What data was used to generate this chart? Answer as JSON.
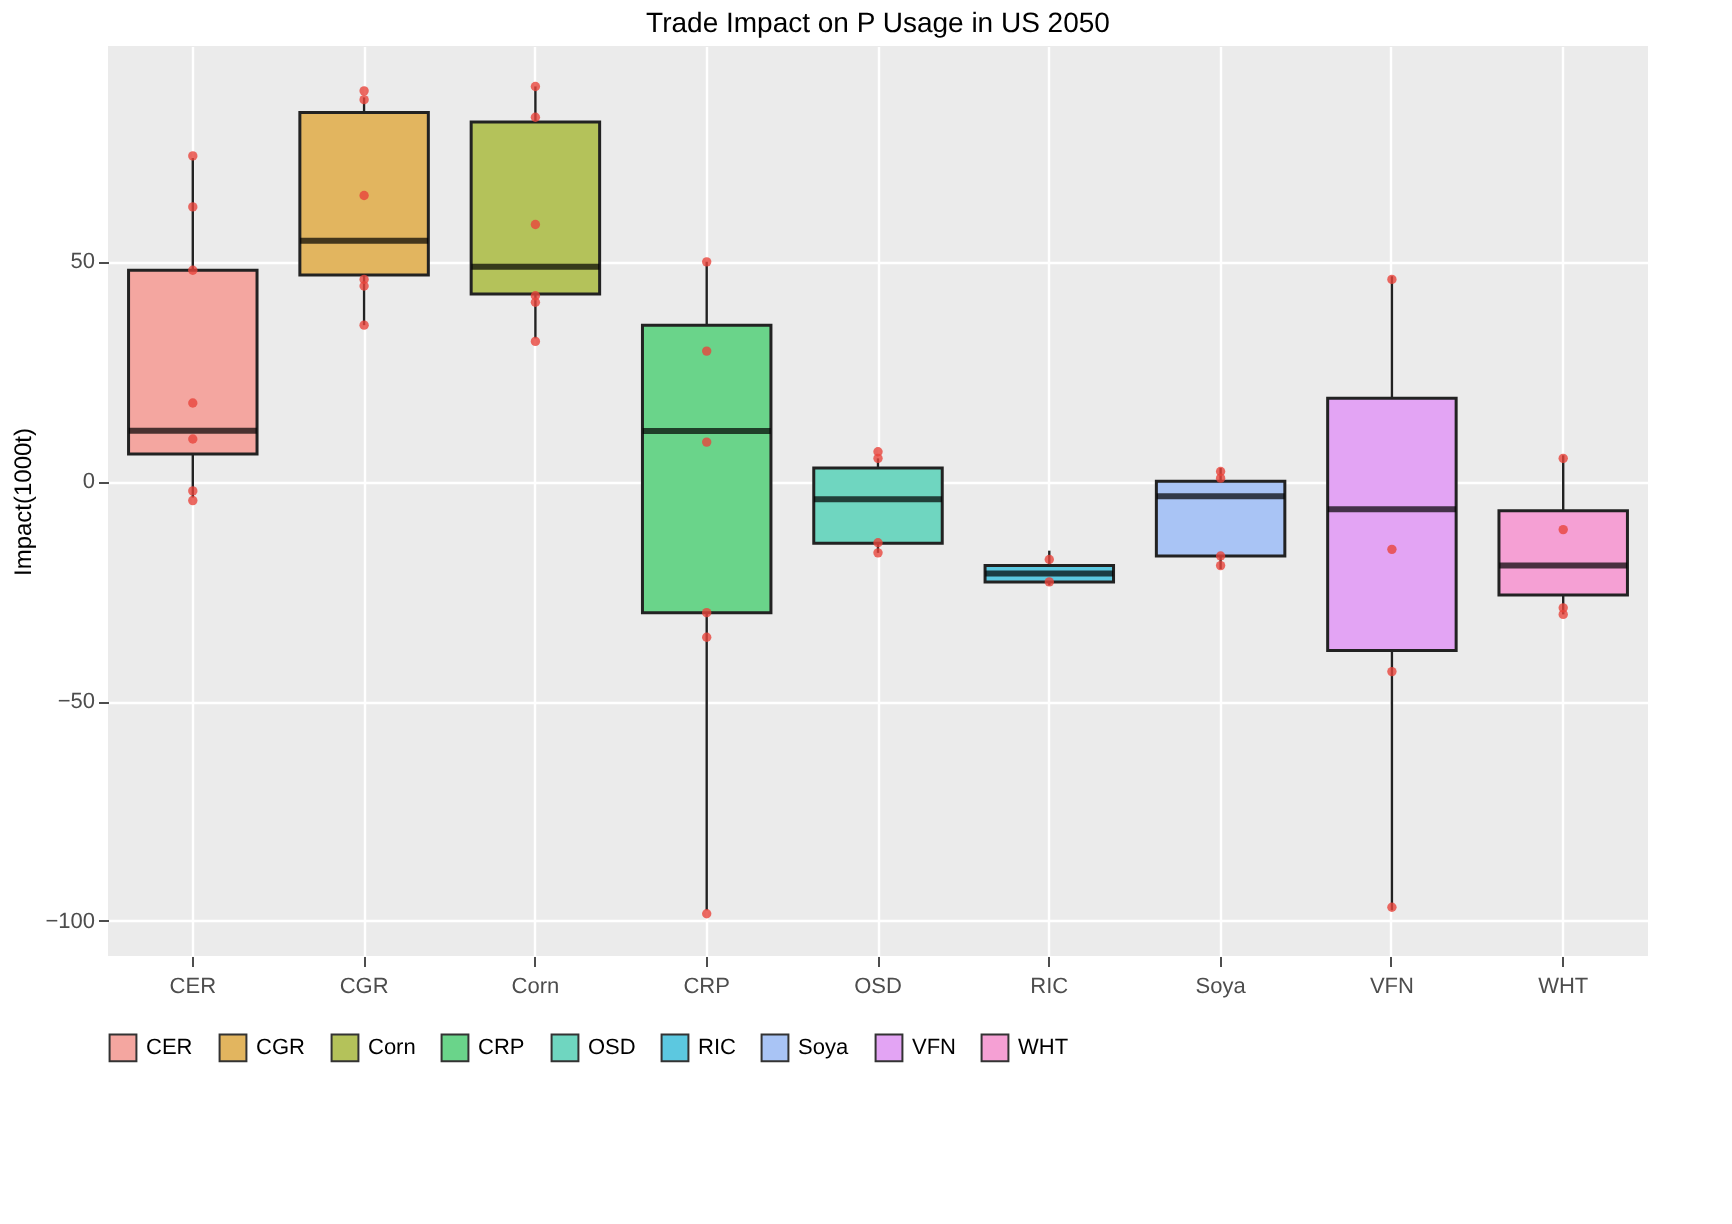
{
  "chart_data": {
    "type": "box",
    "title": "Trade Impact on P Usage in US 2050",
    "ylabel": "Impact(1000t)",
    "categories": [
      "CER",
      "CGR",
      "Corn",
      "CRP",
      "OSD",
      "RIC",
      "Soya",
      "VFN",
      "WHT"
    ],
    "series": [
      {
        "type": "box",
        "name": "CER",
        "color": "#f4a6a0",
        "x": [
          "CER"
        ],
        "boxes": [
          {
            "low": -3.7,
            "q1": 6.2,
            "median": 11.5,
            "q3": 48,
            "high": 73.5
          }
        ]
      },
      {
        "type": "box",
        "name": "CGR",
        "color": "#e2b55f",
        "x": [
          "CGR"
        ],
        "boxes": [
          {
            "low": 35.5,
            "q1": 46.9,
            "median": 54.7,
            "q3": 83.9,
            "high": 87.3
          }
        ]
      },
      {
        "type": "box",
        "name": "Corn",
        "color": "#b4c25a",
        "x": [
          "Corn"
        ],
        "boxes": [
          {
            "low": 32.5,
            "q1": 42.6,
            "median": 48.8,
            "q3": 81.7,
            "high": 89.8
          }
        ]
      },
      {
        "type": "box",
        "name": "CRP",
        "color": "#6ad48a",
        "x": [
          "CRP"
        ],
        "boxes": [
          {
            "low": -97.6,
            "q1": -29.9,
            "median": 11.4,
            "q3": 35.5,
            "high": 49.9
          }
        ]
      },
      {
        "type": "box",
        "name": "OSD",
        "color": "#6fd6c0",
        "x": [
          "OSD"
        ],
        "boxes": [
          {
            "low": -16.3,
            "q1": -14.1,
            "median": -4.1,
            "q3": 3,
            "high": 5.2
          }
        ]
      },
      {
        "type": "box",
        "name": "RIC",
        "color": "#5cc8e0",
        "x": [
          "RIC"
        ],
        "boxes": [
          {
            "low": -23.7,
            "q1": -22.9,
            "median": -21,
            "q3": -19.2,
            "high": -15.8
          }
        ]
      },
      {
        "type": "box",
        "name": "Soya",
        "color": "#a9c4f5",
        "x": [
          "Soya"
        ],
        "boxes": [
          {
            "low": -20,
            "q1": -17,
            "median": -3.4,
            "q3": 0,
            "high": 3
          }
        ]
      },
      {
        "type": "box",
        "name": "VFN",
        "color": "#e3a4f4",
        "x": [
          "VFN"
        ],
        "boxes": [
          {
            "low": -97.6,
            "q1": -38.5,
            "median": -6.4,
            "q3": 18.9,
            "high": 46.6
          }
        ]
      },
      {
        "type": "box",
        "name": "WHT",
        "color": "#f5a0d4",
        "x": [
          "WHT"
        ],
        "boxes": [
          {
            "low": -30.3,
            "q1": -25.9,
            "median": -19.2,
            "q3": -6.7,
            "high": 5.9
          }
        ]
      },
      {
        "type": "scatter",
        "color": "#e8453c",
        "x": [
          "CER",
          "CER",
          "CER",
          "CER",
          "CER",
          "CER",
          "CER",
          "CGR",
          "CGR",
          "CGR",
          "CGR",
          "CGR",
          "CGR",
          "Corn",
          "Corn",
          "Corn",
          "Corn",
          "Corn",
          "Corn",
          "CRP",
          "CRP",
          "CRP",
          "CRP",
          "CRP",
          "CRP",
          "OSD",
          "OSD",
          "OSD",
          "OSD",
          "RIC",
          "RIC",
          "Soya",
          "Soya",
          "Soya",
          "Soya",
          "VFN",
          "VFN",
          "VFN",
          "VFN",
          "WHT",
          "WHT",
          "WHT",
          "WHT"
        ],
        "values": [
          74,
          62.4,
          48,
          17.8,
          9.6,
          -2.2,
          -4.4,
          88.8,
          86.8,
          65,
          45.9,
          44.4,
          35.5,
          89.8,
          82.8,
          58.4,
          42.2,
          40.7,
          31.8,
          49.9,
          29.6,
          8.9,
          -29.9,
          -35.5,
          -98.4,
          6.7,
          5.2,
          -14,
          -16.3,
          -17.8,
          -22.9,
          2.2,
          0.7,
          -17,
          -19.2,
          45.9,
          -15.5,
          -43.3,
          -96.9,
          5.2,
          -11,
          -28.8,
          -30.3
        ]
      }
    ],
    "ylim": [
      -108,
      99
    ],
    "yticks": [
      -100,
      -50,
      0,
      50
    ],
    "grid": true,
    "legend": "bottom"
  }
}
